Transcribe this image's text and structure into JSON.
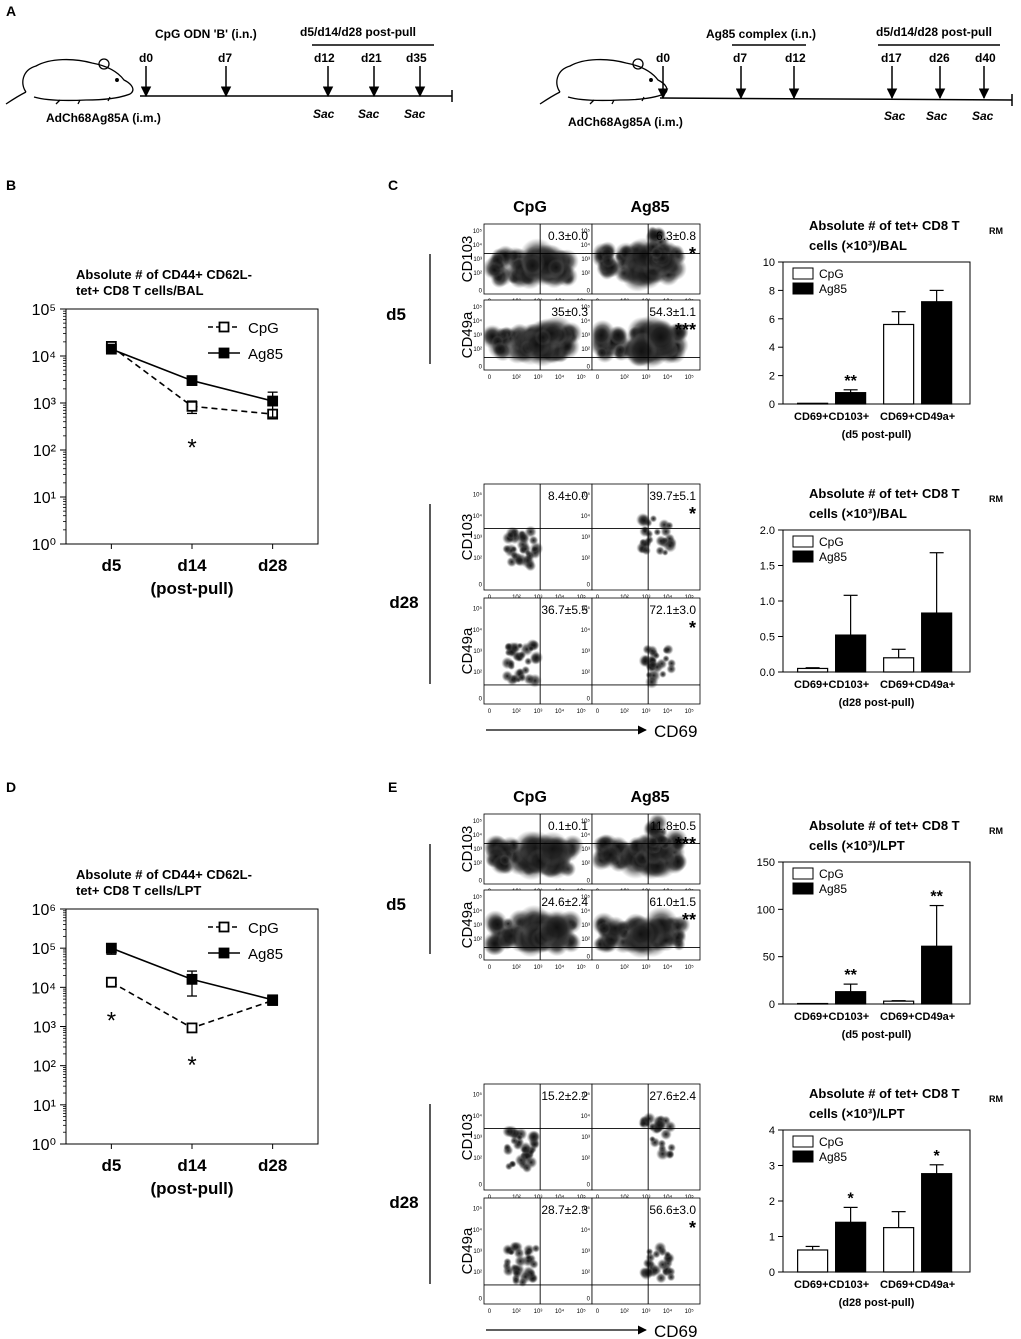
{
  "panels": {
    "A": {
      "letter": "A",
      "cpg_timeline": {
        "treatment": "CpG ODN 'B' (i.n.)",
        "vaccine": "AdCh68Ag85A (i.m.)",
        "post_pull": "d5/d14/d28 post-pull",
        "days": [
          "d0",
          "d7",
          "d12",
          "d21",
          "d35"
        ],
        "sac": [
          "Sac",
          "Sac",
          "Sac"
        ]
      },
      "ag85_timeline": {
        "treatment": "Ag85 complex (i.n.)",
        "vaccine": "AdCh68Ag85A (i.m.)",
        "post_pull": "d5/d14/d28 post-pull",
        "days": [
          "d0",
          "d7",
          "d12",
          "d17",
          "d26",
          "d40"
        ],
        "sac": [
          "Sac",
          "Sac",
          "Sac"
        ]
      }
    },
    "B": {
      "letter": "B"
    },
    "C": {
      "letter": "C",
      "col_labels": [
        "CpG",
        "Ag85"
      ],
      "row_labels": {
        "d5": "d5",
        "d28": "d28"
      },
      "markers": [
        "CD103",
        "CD49a"
      ],
      "x_marker": "CD69",
      "tick_labels": [
        "0",
        "10²",
        "10³",
        "10⁴",
        "10⁵"
      ],
      "stats": {
        "d5_cd103": [
          "0.3±0.0",
          "6.3±0.8"
        ],
        "d5_cd49a": [
          "35±0.3",
          "54.3±1.1"
        ],
        "d28_cd103": [
          "8.4±0.0",
          "39.7±5.1"
        ],
        "d28_cd49a": [
          "36.7±5.5",
          "72.1±3.0"
        ]
      },
      "sig": {
        "d5_cd103": "*",
        "d5_cd49a": "***",
        "d28_cd103": "*",
        "d28_cd49a": "*"
      }
    },
    "D": {
      "letter": "D"
    },
    "E": {
      "letter": "E",
      "col_labels": [
        "CpG",
        "Ag85"
      ],
      "row_labels": {
        "d5": "d5",
        "d28": "d28"
      },
      "markers": [
        "CD103",
        "CD49a"
      ],
      "x_marker": "CD69",
      "tick_labels": [
        "0",
        "10²",
        "10³",
        "10⁴",
        "10⁵"
      ],
      "stats": {
        "d5_cd103": [
          "0.1±0.1",
          "11.8±0.5"
        ],
        "d5_cd49a": [
          "24.6±2.4",
          "61.0±1.5"
        ],
        "d28_cd103": [
          "15.2±2.2",
          "27.6±2.4"
        ],
        "d28_cd49a": [
          "28.7±2.3",
          "56.6±3.0"
        ]
      },
      "sig": {
        "d5_cd103": "***",
        "d5_cd49a": "**",
        "d28_cd103": "",
        "d28_cd49a": "*"
      }
    }
  },
  "colors": {
    "line": "#000000",
    "bar_cpg": "#ffffff",
    "bar_ag85": "#000000",
    "density": "#1a1a1a"
  },
  "chart_data": [
    {
      "id": "B",
      "type": "line",
      "title": "Absolute # of CD44+ CD62L-\ntet+ CD8 T cells/BAL",
      "categories": [
        "d5",
        "d14",
        "d28"
      ],
      "xlabel": "(post-pull)",
      "ylabel": "",
      "yscale": "log",
      "ylim": [
        1,
        100000
      ],
      "yticks": [
        1,
        10,
        100,
        1000,
        10000,
        100000
      ],
      "ytick_labels": [
        "10⁰",
        "10¹",
        "10²",
        "10³",
        "10⁴",
        "10⁵"
      ],
      "series": [
        {
          "name": "CpG",
          "style": "dashed",
          "marker": "open-square",
          "values": [
            16000,
            850,
            580
          ],
          "err": [
            1500,
            250,
            90
          ]
        },
        {
          "name": "Ag85",
          "style": "solid",
          "marker": "filled-square",
          "values": [
            14000,
            3000,
            1100
          ],
          "err": [
            1500,
            500,
            600
          ]
        }
      ],
      "annotations": [
        {
          "category": "d14",
          "value": 150,
          "text": "*"
        }
      ]
    },
    {
      "id": "D",
      "type": "line",
      "title": "Absolute # of CD44+ CD62L-\ntet+ CD8 T cells/LPT",
      "categories": [
        "d5",
        "d14",
        "d28"
      ],
      "xlabel": "(post-pull)",
      "ylabel": "",
      "yscale": "log",
      "ylim": [
        1,
        1000000
      ],
      "yticks": [
        1,
        10,
        100,
        1000,
        10000,
        100000,
        1000000
      ],
      "ytick_labels": [
        "10⁰",
        "10¹",
        "10²",
        "10³",
        "10⁴",
        "10⁵",
        "10⁶"
      ],
      "series": [
        {
          "name": "CpG",
          "style": "dashed",
          "marker": "open-square",
          "values": [
            13500,
            920,
            4600
          ],
          "err": [
            1000,
            100,
            600
          ]
        },
        {
          "name": "Ag85",
          "style": "solid",
          "marker": "filled-square",
          "values": [
            100000,
            16000,
            4800
          ],
          "err": [
            30000,
            10000,
            800
          ]
        }
      ],
      "annotations": [
        {
          "category": "d5",
          "value": 2000,
          "text": "*"
        },
        {
          "category": "d14",
          "value": 150,
          "text": "*"
        }
      ]
    },
    {
      "id": "C-d5",
      "type": "bar",
      "title": "Absolute # of tet+ CD8 T",
      "title_sub": "RM",
      "title_line2": "cells (×10³)/BAL",
      "categories": [
        "CD69+CD103+",
        "CD69+CD49a+"
      ],
      "xlabel": "(d5 post-pull)",
      "ylim": [
        0,
        10
      ],
      "yticks": [
        0,
        2,
        4,
        6,
        8,
        10
      ],
      "ytick_labels": [
        "0",
        "2",
        "4",
        "6",
        "8",
        "10"
      ],
      "series": [
        {
          "name": "CpG",
          "values": [
            0.05,
            5.6
          ],
          "err": [
            0,
            0.9
          ]
        },
        {
          "name": "Ag85",
          "values": [
            0.8,
            7.2
          ],
          "err": [
            0.2,
            0.8
          ]
        }
      ],
      "annotations": [
        {
          "category": 0,
          "series": 1,
          "text": "**"
        }
      ]
    },
    {
      "id": "C-d28",
      "type": "bar",
      "title": "Absolute # of tet+ CD8 T",
      "title_sub": "RM",
      "title_line2": "cells (×10³)/BAL",
      "categories": [
        "CD69+CD103+",
        "CD69+CD49a+"
      ],
      "xlabel": "(d28 post-pull)",
      "ylim": [
        0,
        2.0
      ],
      "yticks": [
        0,
        0.5,
        1.0,
        1.5,
        2.0
      ],
      "ytick_labels": [
        "0.0",
        "0.5",
        "1.0",
        "1.5",
        "2.0"
      ],
      "series": [
        {
          "name": "CpG",
          "values": [
            0.05,
            0.2
          ],
          "err": [
            0.01,
            0.12
          ]
        },
        {
          "name": "Ag85",
          "values": [
            0.52,
            0.83
          ],
          "err": [
            0.56,
            0.85
          ]
        }
      ],
      "annotations": []
    },
    {
      "id": "E-d5",
      "type": "bar",
      "title": "Absolute # of tet+ CD8 T",
      "title_sub": "RM",
      "title_line2": "cells (×10³)/LPT",
      "categories": [
        "CD69+CD103+",
        "CD69+CD49a+"
      ],
      "xlabel": "(d5 post-pull)",
      "ylim": [
        0,
        150
      ],
      "yticks": [
        0,
        50,
        100,
        150
      ],
      "ytick_labels": [
        "0",
        "50",
        "100",
        "150"
      ],
      "series": [
        {
          "name": "CpG",
          "values": [
            0.5,
            3
          ],
          "err": [
            0,
            0.5
          ]
        },
        {
          "name": "Ag85",
          "values": [
            13,
            61
          ],
          "err": [
            8,
            43
          ]
        }
      ],
      "annotations": [
        {
          "category": 0,
          "series": 1,
          "text": "**"
        },
        {
          "category": 1,
          "series": 1,
          "text": "**"
        }
      ]
    },
    {
      "id": "E-d28",
      "type": "bar",
      "title": "Absolute # of tet+ CD8 T",
      "title_sub": "RM",
      "title_line2": "cells (×10³)/LPT",
      "categories": [
        "CD69+CD103+",
        "CD69+CD49a+"
      ],
      "xlabel": "(d28 post-pull)",
      "ylim": [
        0,
        4
      ],
      "yticks": [
        0,
        1,
        2,
        3,
        4
      ],
      "ytick_labels": [
        "0",
        "1",
        "2",
        "3",
        "4"
      ],
      "series": [
        {
          "name": "CpG",
          "values": [
            0.62,
            1.25
          ],
          "err": [
            0.1,
            0.45
          ]
        },
        {
          "name": "Ag85",
          "values": [
            1.4,
            2.77
          ],
          "err": [
            0.42,
            0.25
          ]
        }
      ],
      "annotations": [
        {
          "category": 0,
          "series": 1,
          "text": "*"
        },
        {
          "category": 1,
          "series": 1,
          "text": "*"
        }
      ]
    }
  ]
}
